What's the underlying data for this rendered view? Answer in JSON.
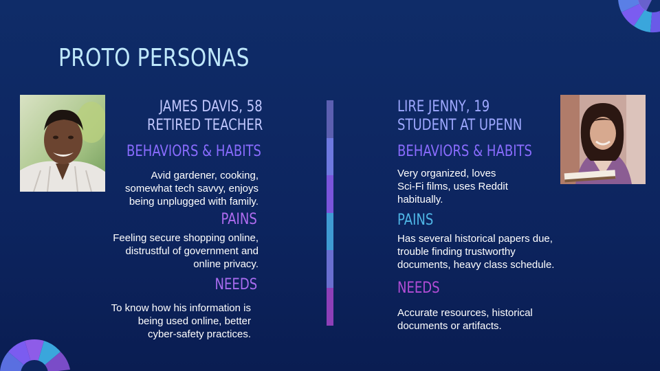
{
  "title": "PROTO PERSONAS",
  "persona_left": {
    "name": "JAMES DAVIS, 58",
    "role": "RETIRED TEACHER",
    "behaviors_heading": "BEHAVIORS & HABITS",
    "behaviors_lines": [
      "Avid gardener, cooking,",
      "somewhat tech savvy, enjoys",
      "being unplugged with family."
    ],
    "pains_heading": "PAINS",
    "pains_lines": [
      "Feeling secure shopping online,",
      "distrustful of government and",
      "online privacy."
    ],
    "needs_heading": "NEEDS",
    "needs_lines": [
      "To know how his information is",
      "being used online, better",
      "cyber-safety practices."
    ]
  },
  "persona_right": {
    "name": "LIRE JENNY, 19",
    "role": "STUDENT AT UPENN",
    "behaviors_heading": "BEHAVIORS & HABITS",
    "behaviors_lines": [
      "Very organized, loves",
      "Sci-Fi films, uses Reddit",
      "habitually."
    ],
    "pains_heading": "PAINS",
    "pains_lines": [
      "Has several historical papers due,",
      "trouble finding trustworthy",
      "documents, heavy class schedule."
    ],
    "needs_heading": "NEEDS",
    "needs_lines": [
      "Accurate resources, historical",
      "documents or artifacts."
    ]
  },
  "colors": {
    "background": "#0d2560",
    "title": "#bfe8fb",
    "divider": [
      "#5c5fb0",
      "#6e79e0",
      "#7a55dc",
      "#3f9bd3",
      "#6a6fd0",
      "#8e3fb8"
    ]
  }
}
